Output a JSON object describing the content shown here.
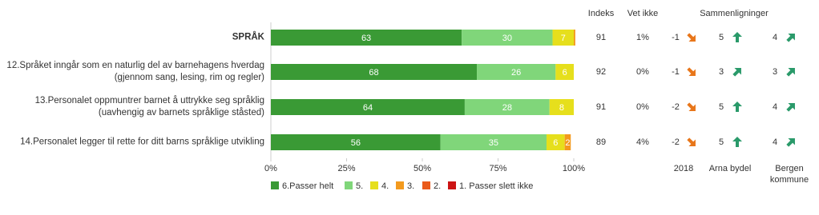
{
  "chart_data": {
    "type": "stacked-bar-horizontal",
    "categories": [
      "SPRÅK",
      "12.Språket inngår som en naturlig del av barnehagens hverdag (gjennom sang, lesing, rim og regler)",
      "13.Personalet oppmuntrer barnet å uttrykke seg språklig (uavhengig av barnets språklige ståsted)",
      "14.Personalet legger til rette for ditt barns språklige utvikling"
    ],
    "series": [
      {
        "name": "6.Passer helt",
        "color": "#3a9a35",
        "values": [
          63,
          68,
          64,
          56
        ]
      },
      {
        "name": "5.",
        "color": "#80d67a",
        "values": [
          30,
          26,
          28,
          35
        ]
      },
      {
        "name": "4.",
        "color": "#e6df1c",
        "values": [
          7,
          6,
          8,
          6
        ]
      },
      {
        "name": "3.",
        "color": "#f39a1e",
        "values": [
          0.5,
          0,
          0,
          2
        ]
      },
      {
        "name": "2.",
        "color": "#ea5a1a",
        "values": [
          0,
          0,
          0,
          0
        ]
      },
      {
        "name": "1. Passer slett ikke",
        "color": "#cc1414",
        "values": [
          0,
          0,
          0,
          0
        ]
      }
    ],
    "xlim": [
      0,
      100
    ],
    "xticks": [
      {
        "value": 0,
        "label": "0%"
      },
      {
        "value": 25,
        "label": "25%"
      },
      {
        "value": 50,
        "label": "50%"
      },
      {
        "value": 75,
        "label": "75%"
      },
      {
        "value": 100,
        "label": "100%"
      }
    ],
    "indeks": {
      "name": "Indeks",
      "values": [
        91,
        92,
        91,
        89
      ]
    },
    "vet_ikke": {
      "name": "Vet ikke",
      "values": [
        1,
        0,
        0,
        4
      ],
      "value_labels": [
        "1%",
        "0%",
        "0%",
        "4%"
      ]
    },
    "comparisons": {
      "title": "Sammenligninger",
      "columns": [
        {
          "name": "2018",
          "values": [
            -1,
            -1,
            -2,
            -2
          ]
        },
        {
          "name": "Arna bydel",
          "values": [
            5,
            3,
            5,
            5
          ]
        },
        {
          "name": "Bergen kommune",
          "values": [
            4,
            3,
            4,
            4
          ]
        }
      ]
    }
  }
}
